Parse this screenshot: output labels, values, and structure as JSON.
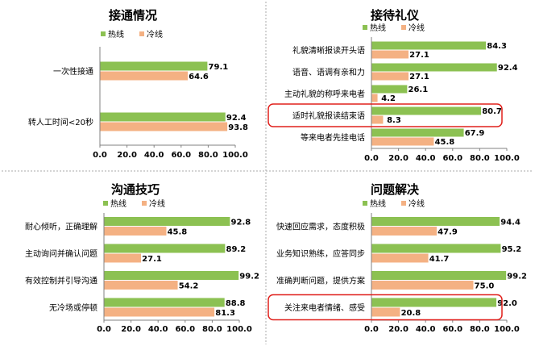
{
  "legend_colors": {
    "hot": "#8cc152",
    "cold": "#f4b183"
  },
  "chart_data": [
    {
      "type": "bar",
      "orientation": "horizontal",
      "title": "接通情况",
      "categories": [
        "一次性接通",
        "转人工时间<20秒"
      ],
      "series": [
        {
          "name": "热线",
          "values": [
            79.1,
            92.4
          ]
        },
        {
          "name": "冷线",
          "values": [
            64.6,
            93.8
          ]
        }
      ],
      "xlim": [
        0,
        100
      ],
      "ticks": [
        "0.0",
        "20.0",
        "40.0",
        "60.0",
        "80.0",
        "100.0"
      ],
      "legend": "top-center",
      "grid": false,
      "highlighted": []
    },
    {
      "type": "bar",
      "orientation": "horizontal",
      "title": "接待礼仪",
      "categories": [
        "礼貌清晰报读开头语",
        "语音、语调有亲和力",
        "主动礼貌的称呼来电者",
        "适时礼貌报读结束语",
        "等来电者先挂电话"
      ],
      "series": [
        {
          "name": "热线",
          "values": [
            84.3,
            92.4,
            26.1,
            80.7,
            67.9
          ]
        },
        {
          "name": "冷线",
          "values": [
            27.1,
            27.1,
            4.2,
            8.3,
            45.8
          ]
        }
      ],
      "xlim": [
        0,
        100
      ],
      "ticks": [
        "0.0",
        "20.0",
        "40.0",
        "60.0",
        "80.0",
        "100.0"
      ],
      "legend": "top-center",
      "grid": false,
      "highlighted": [
        3
      ]
    },
    {
      "type": "bar",
      "orientation": "horizontal",
      "title": "沟通技巧",
      "categories": [
        "耐心倾听，正确理解",
        "主动询问并确认问题",
        "有效控制并引导沟通",
        "无冷场或停顿"
      ],
      "series": [
        {
          "name": "热线",
          "values": [
            92.8,
            89.2,
            99.2,
            88.8
          ]
        },
        {
          "name": "冷线",
          "values": [
            45.8,
            27.1,
            54.2,
            81.3
          ]
        }
      ],
      "xlim": [
        0,
        100
      ],
      "ticks": [
        "0.0",
        "20.0",
        "40.0",
        "60.0",
        "80.0",
        "100.0"
      ],
      "legend": "top-center",
      "grid": false,
      "highlighted": []
    },
    {
      "type": "bar",
      "orientation": "horizontal",
      "title": "问题解决",
      "categories": [
        "快速回应需求，态度积极",
        "业务知识熟练，应答同步",
        "准确判断问题，提供方案",
        "关注来电者情绪、感受"
      ],
      "series": [
        {
          "name": "热线",
          "values": [
            94.4,
            95.2,
            99.2,
            92.0
          ]
        },
        {
          "name": "冷线",
          "values": [
            47.9,
            41.7,
            75.0,
            20.8
          ]
        }
      ],
      "xlim": [
        0,
        100
      ],
      "ticks": [
        "0.0",
        "20.0",
        "40.0",
        "60.0",
        "80.0",
        "100.0"
      ],
      "legend": "top-center",
      "grid": false,
      "highlighted": [
        3
      ]
    }
  ]
}
